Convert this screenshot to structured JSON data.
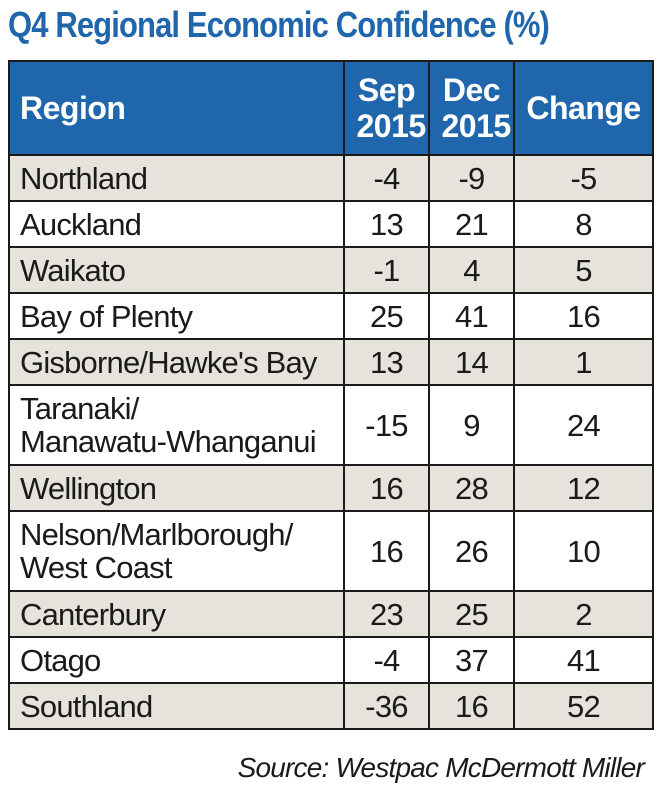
{
  "chart_data": {
    "type": "table",
    "title": "Q4 Regional Economic Confidence (%)",
    "columns": [
      "Region",
      "Sep 2015",
      "Dec 2015",
      "Change"
    ],
    "rows": [
      {
        "region": "Northland",
        "sep": "-4",
        "dec": "-9",
        "change": "-5"
      },
      {
        "region": "Auckland",
        "sep": "13",
        "dec": "21",
        "change": "8"
      },
      {
        "region": "Waikato",
        "sep": "-1",
        "dec": "4",
        "change": "5"
      },
      {
        "region": "Bay of Plenty",
        "sep": "25",
        "dec": "41",
        "change": "16"
      },
      {
        "region": "Gisborne/Hawke's Bay",
        "sep": "13",
        "dec": "14",
        "change": "1"
      },
      {
        "region": "Taranaki/\nManawatu-Whanganui",
        "sep": "-15",
        "dec": "9",
        "change": "24"
      },
      {
        "region": "Wellington",
        "sep": "16",
        "dec": "28",
        "change": "12"
      },
      {
        "region": "Nelson/Marlborough/\nWest Coast",
        "sep": "16",
        "dec": "26",
        "change": "10"
      },
      {
        "region": "Canterbury",
        "sep": "23",
        "dec": "25",
        "change": "2"
      },
      {
        "region": "Otago",
        "sep": "-4",
        "dec": "37",
        "change": "41"
      },
      {
        "region": "Southland",
        "sep": "-36",
        "dec": "16",
        "change": "52"
      }
    ],
    "source": "Source: Westpac McDermott Miller"
  },
  "colors": {
    "header": "#1f66ad",
    "shade": "#e6e3dc"
  }
}
